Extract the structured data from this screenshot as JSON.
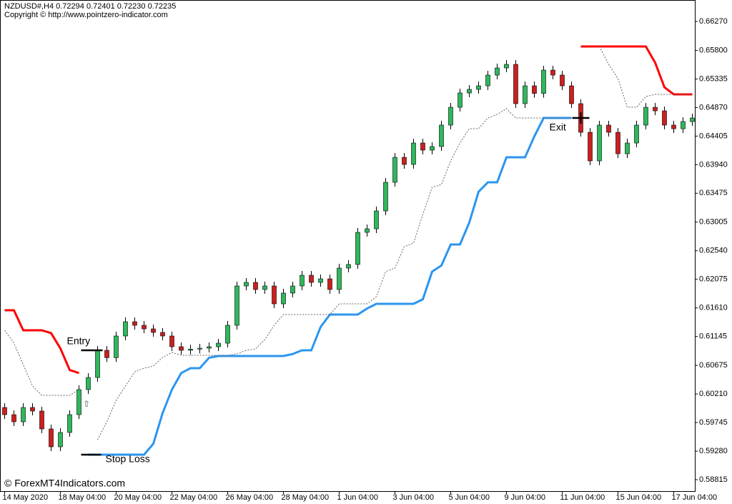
{
  "chart_data": {
    "type": "candlestick",
    "header": "NZDUSD#,H4  0.72294 0.72401 0.72230 0.72235",
    "copyright": "Copyright © http://www.pointzero-indicator.com",
    "watermark": "© ForexMT4Indicators.com",
    "up_color": "#2eb85c",
    "down_color": "#cc1f1f",
    "open": [
      0.5999,
      0.59873,
      0.59757,
      0.5999,
      0.59932,
      0.59641,
      0.5935,
      0.59583,
      0.59873,
      0.60281,
      0.60478,
      0.6092,
      0.608,
      0.61153,
      0.61385,
      0.61327,
      0.61269,
      0.61211,
      0.61153,
      0.60978,
      0.6092,
      0.6094,
      0.60955,
      0.60978,
      0.61036,
      0.61327,
      0.61967,
      0.62025,
      0.61909,
      0.61967,
      0.61676,
      0.61851,
      0.61967,
      0.62141,
      0.62025,
      0.62083,
      0.61909,
      0.62258,
      0.62316,
      0.62839,
      0.62897,
      0.63188,
      0.63653,
      0.6406,
      0.63944,
      0.64293,
      0.64177,
      0.64235,
      0.64584,
      0.64874,
      0.65107,
      0.65165,
      0.65223,
      0.65398,
      0.65514,
      0.65572,
      0.64933,
      0.65223,
      0.651,
      0.65479,
      0.65398,
      0.65223,
      0.64933,
      0.64467,
      0.64002,
      0.64584,
      0.64467,
      0.64118,
      0.64293,
      0.64584,
      0.64874,
      0.64816,
      0.64584,
      0.64525,
      0.64642
    ],
    "high": [
      0.6006,
      0.59943,
      0.6006,
      0.6006,
      0.60002,
      0.59711,
      0.59653,
      0.59943,
      0.60351,
      0.60548,
      0.6099,
      0.6099,
      0.61223,
      0.61455,
      0.61455,
      0.61397,
      0.61339,
      0.61281,
      0.61223,
      0.61048,
      0.6101,
      0.61025,
      0.61048,
      0.61106,
      0.61397,
      0.62037,
      0.62095,
      0.62095,
      0.62037,
      0.62037,
      0.61921,
      0.62037,
      0.62211,
      0.62211,
      0.62153,
      0.62153,
      0.62328,
      0.62386,
      0.62909,
      0.62967,
      0.63258,
      0.63723,
      0.6413,
      0.6413,
      0.64363,
      0.64363,
      0.64305,
      0.64654,
      0.64944,
      0.65177,
      0.65235,
      0.65293,
      0.65468,
      0.65584,
      0.65642,
      0.65642,
      0.65293,
      0.65293,
      0.65549,
      0.65549,
      0.65468,
      0.65293,
      0.65003,
      0.64537,
      0.64654,
      0.64654,
      0.64537,
      0.64363,
      0.64654,
      0.64944,
      0.64944,
      0.64886,
      0.64654,
      0.64712,
      0.6477
    ],
    "low": [
      0.59803,
      0.59687,
      0.59687,
      0.59862,
      0.59571,
      0.5928,
      0.5928,
      0.59513,
      0.59803,
      0.60211,
      0.60408,
      0.6073,
      0.6073,
      0.61083,
      0.61257,
      0.61199,
      0.61141,
      0.61083,
      0.60908,
      0.6085,
      0.6085,
      0.6087,
      0.60885,
      0.60908,
      0.60966,
      0.61257,
      0.61897,
      0.61839,
      0.61839,
      0.61606,
      0.61606,
      0.61781,
      0.61897,
      0.61955,
      0.61955,
      0.61839,
      0.61839,
      0.62188,
      0.62246,
      0.62769,
      0.62827,
      0.63118,
      0.63583,
      0.63874,
      0.63874,
      0.64107,
      0.64107,
      0.64165,
      0.64514,
      0.64804,
      0.65037,
      0.65095,
      0.65153,
      0.65328,
      0.65444,
      0.64863,
      0.64863,
      0.6503,
      0.6503,
      0.65328,
      0.65153,
      0.64863,
      0.64397,
      0.63932,
      0.63932,
      0.64397,
      0.64048,
      0.64048,
      0.64223,
      0.64514,
      0.64746,
      0.64514,
      0.64455,
      0.64455,
      0.64572
    ],
    "close": [
      0.59873,
      0.59757,
      0.5999,
      0.59932,
      0.59641,
      0.5935,
      0.59583,
      0.59873,
      0.60281,
      0.60478,
      0.6092,
      0.608,
      0.61153,
      0.61385,
      0.61327,
      0.61269,
      0.61211,
      0.61153,
      0.60978,
      0.6092,
      0.6094,
      0.60955,
      0.60978,
      0.61036,
      0.61327,
      0.61967,
      0.62025,
      0.61909,
      0.61967,
      0.61676,
      0.61851,
      0.61967,
      0.62141,
      0.62025,
      0.62083,
      0.61909,
      0.62258,
      0.62316,
      0.62839,
      0.62897,
      0.63188,
      0.63653,
      0.6406,
      0.63944,
      0.64293,
      0.64177,
      0.64235,
      0.64584,
      0.64874,
      0.65107,
      0.65165,
      0.65223,
      0.65398,
      0.65514,
      0.65572,
      0.64933,
      0.65223,
      0.651,
      0.65479,
      0.65398,
      0.65223,
      0.64933,
      0.64467,
      0.64002,
      0.64584,
      0.64467,
      0.64118,
      0.64293,
      0.64584,
      0.64874,
      0.64816,
      0.64584,
      0.64525,
      0.64642,
      0.647
    ],
    "series": [
      {
        "color": "#ff0000",
        "style": "solid",
        "width": 3,
        "values": [
          0.61572,
          0.61572,
          0.61246,
          0.61246,
          0.61246,
          0.612,
          0.6095,
          0.606,
          0.6055,
          null,
          null,
          null,
          null,
          null,
          null,
          null,
          null,
          null,
          null,
          null,
          null,
          null,
          null,
          null,
          null,
          null,
          null,
          null,
          null,
          null,
          null,
          null,
          null,
          null,
          null,
          null,
          null,
          null,
          null,
          null,
          null,
          null,
          null,
          null,
          null,
          null,
          null,
          null,
          null,
          null,
          null,
          null,
          null,
          null,
          null,
          null,
          null,
          null,
          null,
          null,
          null,
          null,
          0.65863,
          0.65863,
          0.65863,
          0.65863,
          0.65863,
          0.65863,
          0.65863,
          0.65863,
          0.656,
          0.652,
          0.65084,
          0.65084,
          0.65084
        ]
      },
      {
        "color": "#2b95f0",
        "style": "solid",
        "width": 3,
        "values": [
          null,
          null,
          null,
          null,
          null,
          null,
          null,
          null,
          null,
          0.59222,
          0.59222,
          0.59222,
          0.59222,
          0.59222,
          0.59222,
          0.59222,
          0.594,
          0.599,
          0.60281,
          0.6055,
          0.60629,
          0.60629,
          0.608,
          0.60827,
          0.60827,
          0.60827,
          0.60827,
          0.60827,
          0.60827,
          0.60827,
          0.60827,
          0.6086,
          0.6092,
          0.6092,
          0.613,
          0.61502,
          0.61502,
          0.61502,
          0.61502,
          0.616,
          0.61676,
          0.61676,
          0.61676,
          0.61676,
          0.61676,
          0.6175,
          0.622,
          0.623,
          0.62642,
          0.62642,
          0.63,
          0.635,
          0.63653,
          0.63653,
          0.6406,
          0.6406,
          0.6406,
          0.644,
          0.647,
          0.647,
          0.647,
          0.647,
          null,
          null,
          null,
          null,
          null,
          null,
          null,
          null,
          null,
          null,
          null,
          null,
          null
        ]
      },
      {
        "color": "#666666",
        "style": "dotted",
        "width": 1,
        "values": [
          0.61246,
          0.61036,
          0.60688,
          0.60339,
          0.60188,
          0.60188,
          0.60188,
          0.60188,
          0.60281,
          null,
          0.59466,
          0.59757,
          0.60106,
          0.60339,
          0.60571,
          0.60629,
          0.60664,
          0.60804,
          0.60885,
          0.60839,
          0.60839,
          0.60839,
          0.60839,
          0.60839,
          0.60839,
          0.60862,
          0.6092,
          0.60943,
          0.61095,
          0.61327,
          0.61502,
          0.61502,
          0.61502,
          0.61502,
          0.61502,
          0.61502,
          0.61676,
          0.61676,
          0.61676,
          0.61676,
          0.61793,
          0.622,
          0.62258,
          0.62607,
          0.62665,
          0.6313,
          0.63572,
          0.63618,
          0.64002,
          0.64293,
          0.64526,
          0.64526,
          0.647,
          0.64758,
          0.64851,
          0.647,
          0.647,
          0.647,
          0.647,
          0.647,
          0.647,
          0.647,
          null,
          null,
          0.65863,
          0.65572,
          0.6534,
          0.64874,
          0.64874,
          0.65049,
          0.65084,
          0.65084,
          0.65084,
          0.65084,
          0.65084
        ]
      }
    ],
    "annotations": [
      {
        "text": "Entry",
        "value": 0.6092
      },
      {
        "text": "Exit",
        "value": 0.647
      },
      {
        "text": "Stop Loss",
        "value": 0.59222
      }
    ],
    "xlim": [
      -0.5,
      74.27
    ],
    "xticks": [
      {
        "value": 0,
        "label": "14 May 2020"
      },
      {
        "value": 6,
        "label": "18 May 04:00"
      },
      {
        "value": 12,
        "label": "20 May 04:00"
      },
      {
        "value": 18,
        "label": "22 May 04:00"
      },
      {
        "value": 24,
        "label": "26 May 04:00"
      },
      {
        "value": 30,
        "label": "28 May 04:00"
      },
      {
        "value": 36,
        "label": "1 Jun 04:00"
      },
      {
        "value": 42,
        "label": "3 Jun 04:00"
      },
      {
        "value": 48,
        "label": "5 Jun 04:00"
      },
      {
        "value": 54,
        "label": "9 Jun 04:00"
      },
      {
        "value": 60,
        "label": "11 Jun 04:00"
      },
      {
        "value": 66,
        "label": "15 Jun 04:00"
      },
      {
        "value": 72,
        "label": "17 Jun 04:00"
      }
    ],
    "ylim": [
      0.58629,
      0.66596
    ],
    "yticks": [
      {
        "value": 0.6627,
        "label": "0.66270"
      },
      {
        "value": 0.658,
        "label": "0.65800"
      },
      {
        "value": 0.65335,
        "label": "0.65335"
      },
      {
        "value": 0.6487,
        "label": "0.64870"
      },
      {
        "value": 0.64405,
        "label": "0.64405"
      },
      {
        "value": 0.6394,
        "label": "0.63940"
      },
      {
        "value": 0.63475,
        "label": "0.63475"
      },
      {
        "value": 0.63005,
        "label": "0.63005"
      },
      {
        "value": 0.6254,
        "label": "0.62540"
      },
      {
        "value": 0.62075,
        "label": "0.62075"
      },
      {
        "value": 0.6161,
        "label": "0.61610"
      },
      {
        "value": 0.61145,
        "label": "0.61145"
      },
      {
        "value": 0.60675,
        "label": "0.60675"
      },
      {
        "value": 0.6021,
        "label": "0.60210"
      },
      {
        "value": 0.59745,
        "label": "0.59745"
      },
      {
        "value": 0.5928,
        "label": "0.59280"
      },
      {
        "value": 0.58815,
        "label": "0.58815"
      }
    ]
  }
}
